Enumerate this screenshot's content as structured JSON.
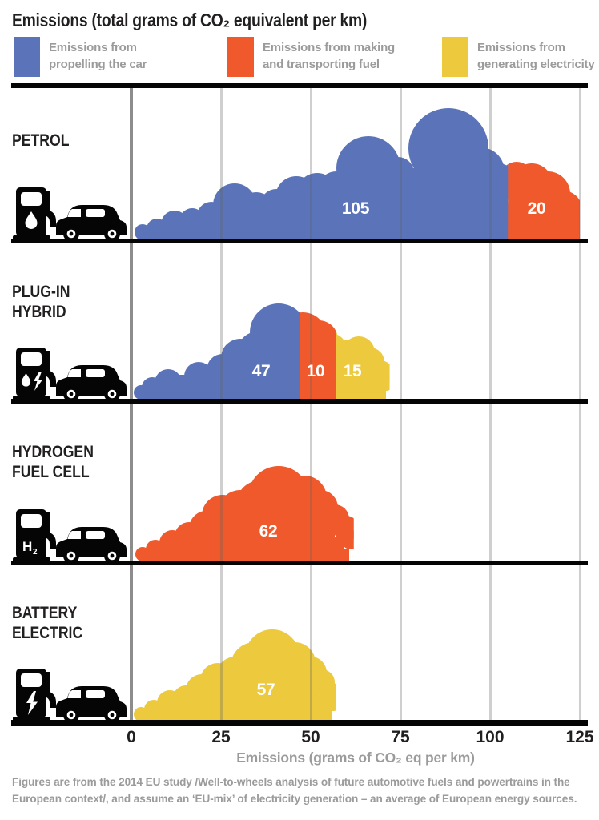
{
  "title": "Emissions (total grams of CO₂ equivalent per km)",
  "legend": {
    "items": [
      {
        "key": "propelling",
        "line1": "Emissions from",
        "line2": "propelling the car"
      },
      {
        "key": "fuel",
        "line1": "Emissions from making",
        "line2": "and transporting fuel"
      },
      {
        "key": "electricity",
        "line1": "Emissions from",
        "line2": "generating electricity"
      }
    ]
  },
  "chart_data": {
    "type": "bar",
    "orientation": "horizontal-stacked",
    "style": "cloud-shaped exhaust bars",
    "x_axis": {
      "label": "Emissions (grams of CO₂ eq per km)",
      "ticks": [
        0,
        25,
        50,
        75,
        100,
        125
      ],
      "range": [
        0,
        125
      ],
      "grid": true
    },
    "series_colors": {
      "propelling": "#5B74B9",
      "fuel": "#F0592B",
      "electricity": "#EDC93E"
    },
    "rows": [
      {
        "label_lines": [
          "PETROL"
        ],
        "icon": "petrol-pump-car",
        "segments": [
          {
            "type": "propelling",
            "value": 105,
            "label": "105"
          },
          {
            "type": "fuel",
            "value": 20,
            "label": "20"
          }
        ],
        "total": 125
      },
      {
        "label_lines": [
          "PLUG-IN",
          "HYBRID"
        ],
        "icon": "hybrid-pump-car",
        "segments": [
          {
            "type": "propelling",
            "value": 47,
            "label": "47"
          },
          {
            "type": "fuel",
            "value": 10,
            "label": "10"
          },
          {
            "type": "electricity",
            "value": 15,
            "label": "15"
          }
        ],
        "total": 72
      },
      {
        "label_lines": [
          "HYDROGEN",
          "FUEL CELL"
        ],
        "icon": "hydrogen-pump-car",
        "segments": [
          {
            "type": "fuel",
            "value": 62,
            "label": "62"
          }
        ],
        "total": 62
      },
      {
        "label_lines": [
          "BATTERY",
          "ELECTRIC"
        ],
        "icon": "battery-pump-car",
        "segments": [
          {
            "type": "electricity",
            "value": 57,
            "label": "57"
          }
        ],
        "total": 57
      }
    ]
  },
  "axis_label": "Emissions (grams of CO₂ eq per km)",
  "footer": "Figures are from the 2014 EU study /Well-to-wheels analysis of future automotive fuels and powertrains in the European context/, and assume an ‘EU-mix’ of electricity generation – an average of European energy sources."
}
